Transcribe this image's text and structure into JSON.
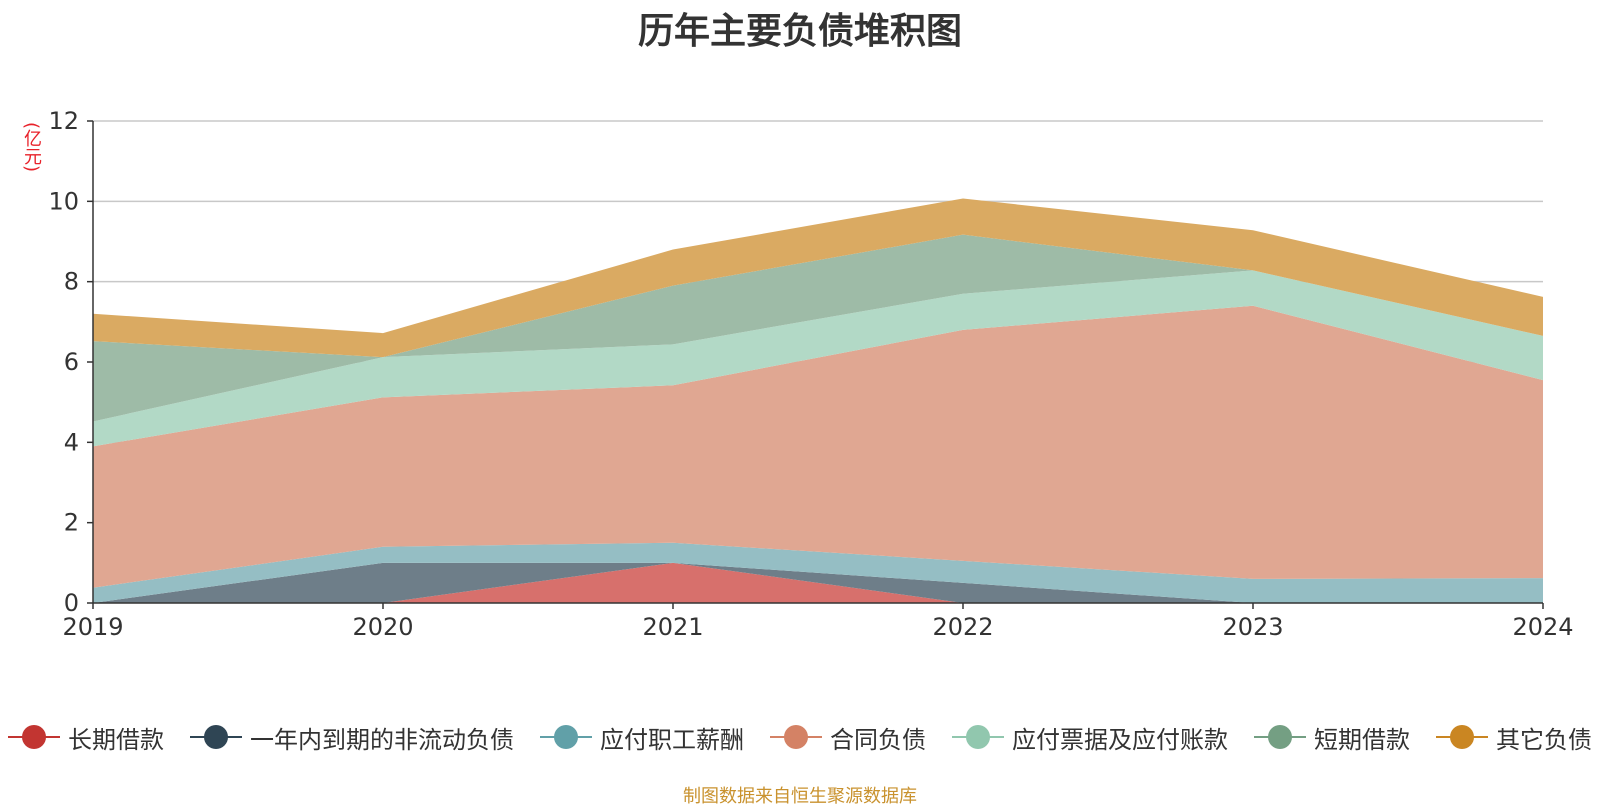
{
  "title": "历年主要负债堆积图",
  "unit_label": "(亿元)",
  "source_note": "制图数据来自恒生聚源数据库",
  "chart_data": {
    "type": "area",
    "stacked": true,
    "title": "历年主要负债堆积图",
    "ylabel": "(亿元)",
    "xlabel": "",
    "x": [
      "2019",
      "2020",
      "2021",
      "2022",
      "2023",
      "2024"
    ],
    "ylim": [
      0,
      12
    ],
    "yticks": [
      0,
      2,
      4,
      6,
      8,
      10,
      12
    ],
    "grid": true,
    "legend_position": "bottom",
    "series": [
      {
        "name": "长期借款",
        "color": "#c23531",
        "fill": "#d7706c",
        "values": [
          0,
          0,
          1.0,
          0,
          0,
          0
        ]
      },
      {
        "name": "一年内到期的非流动负债",
        "color": "#2f4554",
        "fill": "#6e7e89",
        "values": [
          0,
          1.0,
          0,
          0.5,
          0,
          0
        ]
      },
      {
        "name": "应付职工薪酬",
        "color": "#61a0a8",
        "fill": "#95bec4",
        "values": [
          0.38,
          0.4,
          0.5,
          0.55,
          0.6,
          0.62
        ]
      },
      {
        "name": "合同负债",
        "color": "#d48265",
        "fill": "#e0a792",
        "values": [
          3.52,
          3.72,
          3.92,
          5.75,
          6.8,
          4.93
        ]
      },
      {
        "name": "应付票据及应付账款",
        "color": "#91c7ae",
        "fill": "#b2d9c6",
        "values": [
          0.62,
          1.0,
          1.02,
          0.9,
          0.88,
          1.1
        ]
      },
      {
        "name": "短期借款",
        "color": "#749f83",
        "fill": "#9ebba7",
        "values": [
          2.0,
          0,
          1.46,
          1.47,
          0,
          0
        ]
      },
      {
        "name": "其它负债",
        "color": "#ca8622",
        "fill": "#daaa62",
        "values": [
          0.68,
          0.6,
          0.9,
          0.9,
          1.0,
          0.97
        ]
      }
    ]
  }
}
